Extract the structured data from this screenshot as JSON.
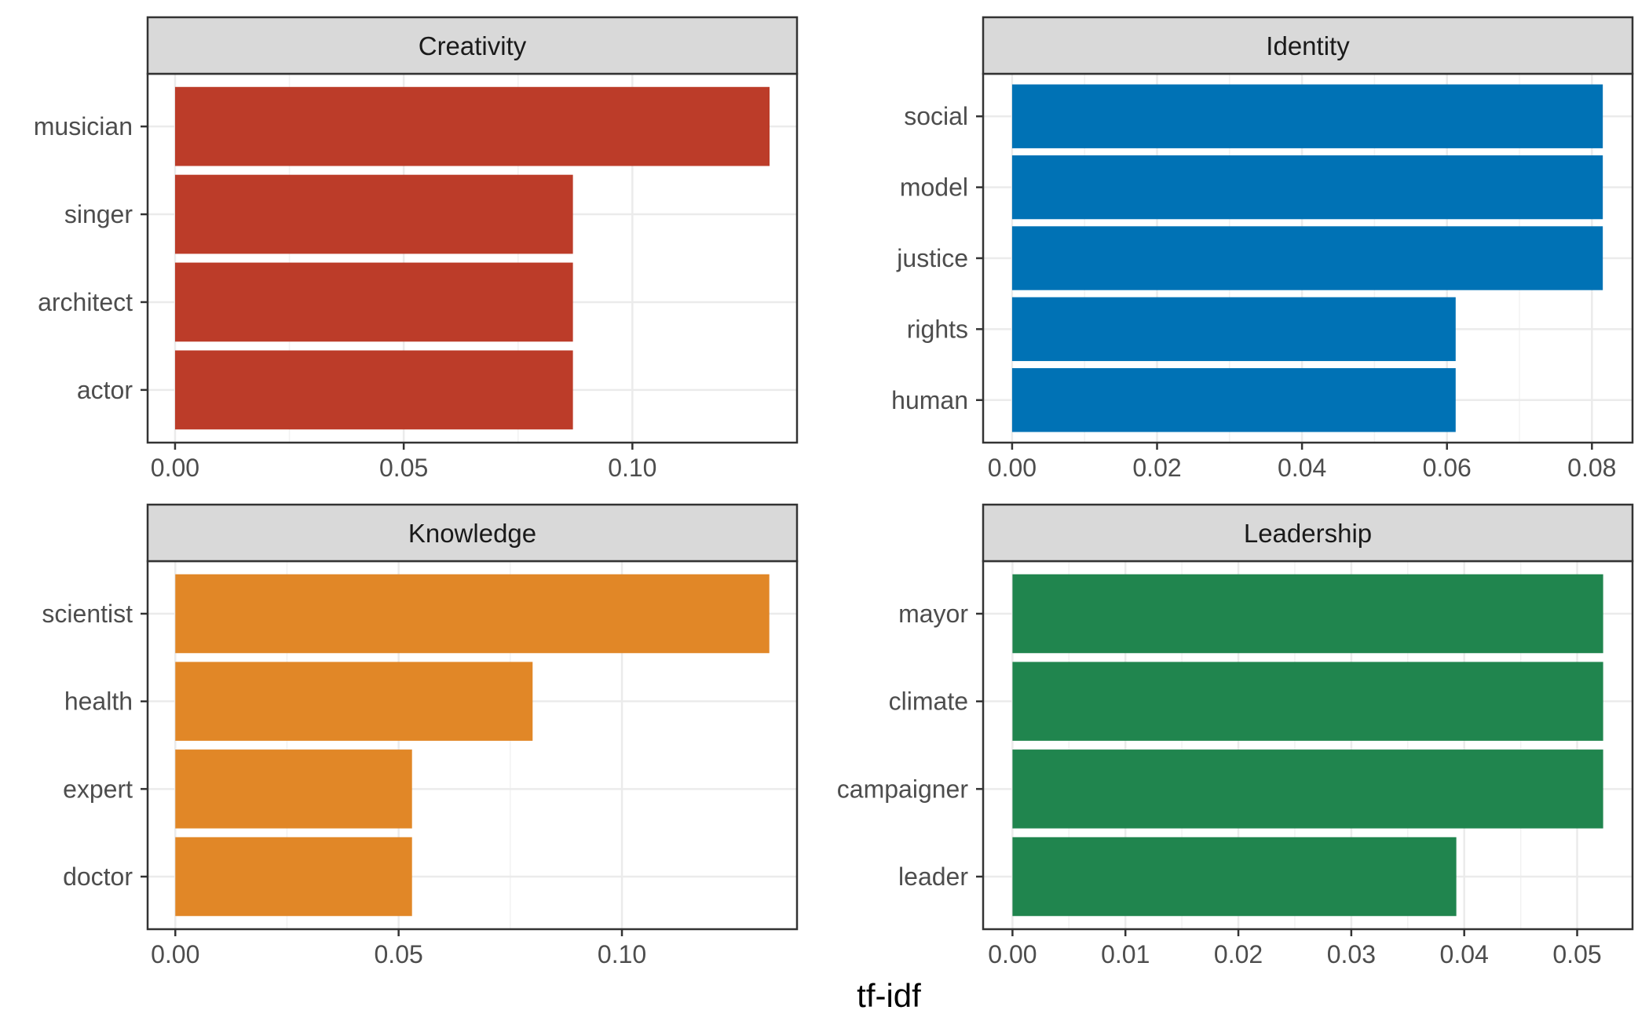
{
  "chart_data": {
    "type": "bar",
    "orientation": "horizontal",
    "xlabel": "tf-idf",
    "grid": true,
    "panels": [
      {
        "title": "Creativity",
        "color": "#BC3C29",
        "categories": [
          "musician",
          "singer",
          "architect",
          "actor"
        ],
        "values": [
          0.13,
          0.087,
          0.087,
          0.087
        ],
        "xlim": [
          -0.006,
          0.136
        ],
        "xticks": [
          0.0,
          0.05,
          0.1
        ],
        "xtick_labels": [
          "0.00",
          "0.05",
          "0.10"
        ]
      },
      {
        "title": "Identity",
        "color": "#0072B5",
        "categories": [
          "social",
          "model",
          "justice",
          "rights",
          "human"
        ],
        "values": [
          0.0815,
          0.0815,
          0.0815,
          0.0612,
          0.0612
        ],
        "xlim": [
          -0.004,
          0.0856
        ],
        "xticks": [
          0.0,
          0.02,
          0.04,
          0.06,
          0.08
        ],
        "xtick_labels": [
          "0.00",
          "0.02",
          "0.04",
          "0.06",
          "0.08"
        ]
      },
      {
        "title": "Knowledge",
        "color": "#E18727",
        "categories": [
          "scientist",
          "health",
          "expert",
          "doctor"
        ],
        "values": [
          0.133,
          0.08,
          0.053,
          0.053
        ],
        "xlim": [
          -0.0062,
          0.1392
        ],
        "xticks": [
          0.0,
          0.05,
          0.1
        ],
        "xtick_labels": [
          "0.00",
          "0.05",
          "0.10"
        ]
      },
      {
        "title": "Leadership",
        "color": "#20854E",
        "categories": [
          "mayor",
          "climate",
          "campaigner",
          "leader"
        ],
        "values": [
          0.0523,
          0.0523,
          0.0523,
          0.0393
        ],
        "xlim": [
          -0.0026,
          0.0549
        ],
        "xticks": [
          0.0,
          0.01,
          0.02,
          0.03,
          0.04,
          0.05
        ],
        "xtick_labels": [
          "0.00",
          "0.01",
          "0.02",
          "0.03",
          "0.04",
          "0.05"
        ]
      }
    ]
  }
}
